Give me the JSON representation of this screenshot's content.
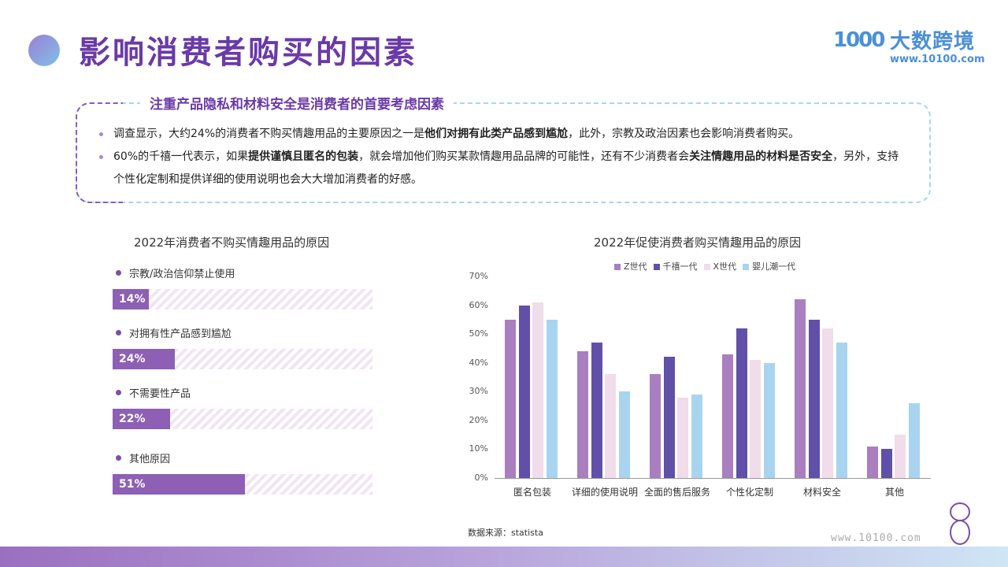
{
  "header": {
    "title": "影响消费者购买的因素",
    "logo": {
      "mark": "1000",
      "name": "大数跨境",
      "url": "www.10100.com"
    }
  },
  "callout": {
    "title": "注重产品隐私和材料安全是消费者的首要考虑因素",
    "bullets": [
      {
        "parts": [
          {
            "t": "调查显示，大约24%的消费者不购买情趣用品的主要原因之一是",
            "b": false
          },
          {
            "t": "他们对拥有此类产品感到尴尬",
            "b": true
          },
          {
            "t": "，此外，宗教及政治因素也会影响消费者购买。",
            "b": false
          }
        ]
      },
      {
        "parts": [
          {
            "t": "60%的千禧一代表示，如果",
            "b": false
          },
          {
            "t": "提供谨慎且匿名的包装",
            "b": true
          },
          {
            "t": "，就会增加他们购买某款情趣用品品牌的可能性，还有不少消费者会",
            "b": false
          },
          {
            "t": "关注情趣用品的材料是否安全",
            "b": true
          },
          {
            "t": "，另外，支持个性化定制和提供详细的使用说明也会大大增加消费者的好感。",
            "b": false
          }
        ]
      }
    ]
  },
  "chart_data": [
    {
      "type": "bar",
      "orientation": "horizontal",
      "title": "2022年消费者不购买情趣用品的原因",
      "categories": [
        "宗教/政治信仰禁止使用",
        "对拥有性产品感到尴尬",
        "不需要性产品",
        "其他原因"
      ],
      "values": [
        14,
        24,
        22,
        51
      ],
      "labels": [
        "14%",
        "24%",
        "22%",
        "51%"
      ],
      "xlim": [
        0,
        100
      ]
    },
    {
      "type": "bar",
      "title": "2022年促使消费者购买情趣用品的原因",
      "categories": [
        "匿名包装",
        "详细的使用说明",
        "全面的售后服务",
        "个性化定制",
        "材料安全",
        "其他"
      ],
      "series": [
        {
          "name": "Z世代",
          "color": "#a97fbf",
          "values": [
            55,
            44,
            36,
            43,
            62,
            11
          ]
        },
        {
          "name": "千禧一代",
          "color": "#6050a8",
          "values": [
            60,
            47,
            42,
            52,
            55,
            10
          ]
        },
        {
          "name": "X世代",
          "color": "#f0dcea",
          "values": [
            61,
            36,
            28,
            41,
            52,
            15
          ]
        },
        {
          "name": "婴儿潮一代",
          "color": "#a9d4f0",
          "values": [
            55,
            30,
            29,
            40,
            47,
            26
          ]
        }
      ],
      "yticks": [
        "0%",
        "10%",
        "20%",
        "30%",
        "40%",
        "50%",
        "60%",
        "70%"
      ],
      "ylim": [
        0,
        70
      ],
      "legend_position": "top",
      "grid": false
    }
  ],
  "source": "数据来源：statista",
  "footer": {
    "url": "www.10100.com",
    "page_mark": "8"
  }
}
